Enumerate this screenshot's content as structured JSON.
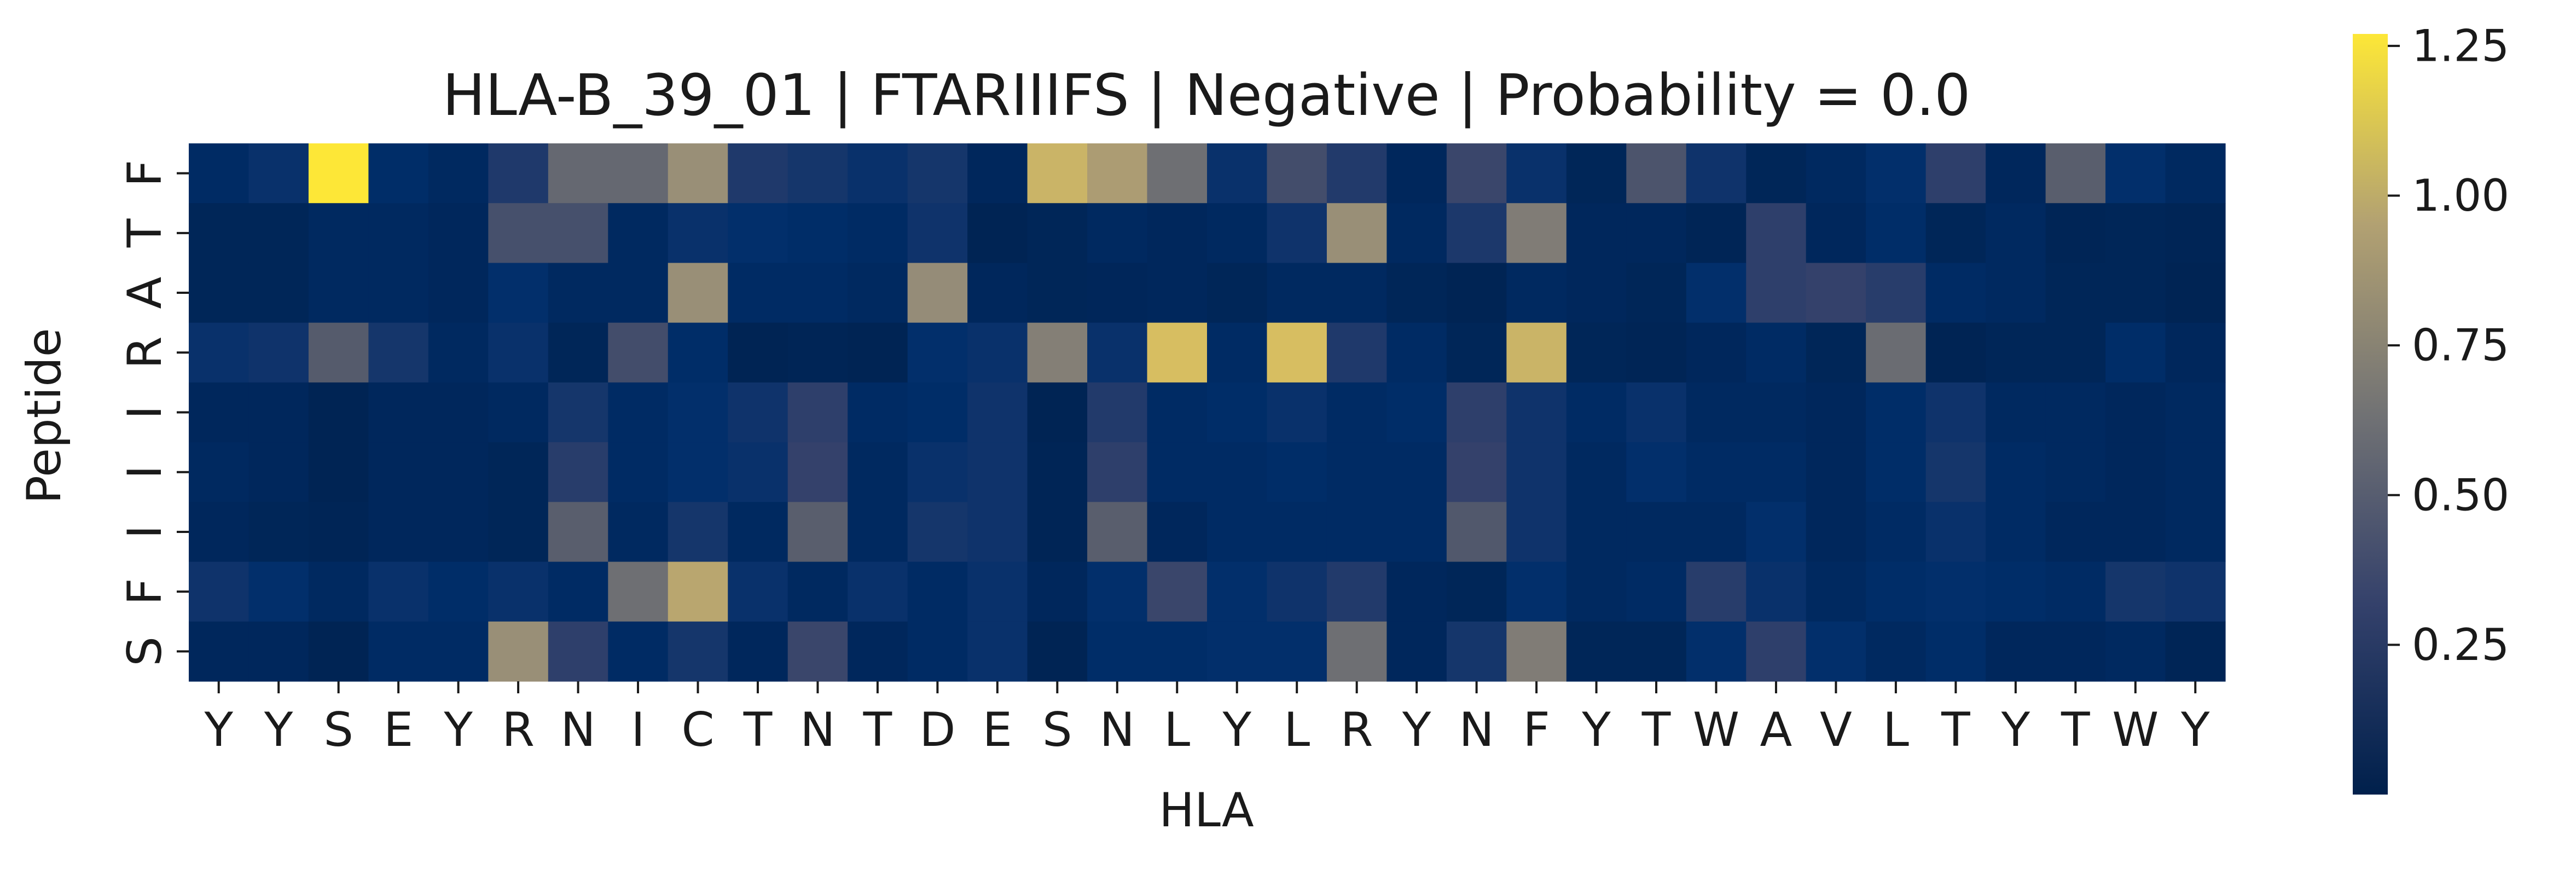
{
  "chart_data": {
    "type": "heatmap",
    "title": "HLA-B_39_01 | FTARIIIFS | Negative | Probability = 0.0",
    "xlabel": "HLA",
    "ylabel": "Peptide",
    "x_labels": [
      "Y",
      "Y",
      "S",
      "E",
      "Y",
      "R",
      "N",
      "I",
      "C",
      "T",
      "N",
      "T",
      "D",
      "E",
      "S",
      "N",
      "L",
      "Y",
      "L",
      "R",
      "Y",
      "N",
      "F",
      "Y",
      "T",
      "W",
      "A",
      "V",
      "L",
      "T",
      "Y",
      "T",
      "W",
      "Y"
    ],
    "y_labels": [
      "F",
      "T",
      "A",
      "R",
      "I",
      "I",
      "I",
      "F",
      "S"
    ],
    "colormap": "cividis",
    "vmin": 0.0,
    "vmax": 1.27,
    "colorbar_ticks": [
      "0.25",
      "0.50",
      "0.75",
      "1.00",
      "1.25"
    ],
    "colorbar_tick_values": [
      0.25,
      0.5,
      0.75,
      1.0,
      1.25
    ],
    "values": [
      [
        0.12,
        0.18,
        1.27,
        0.14,
        0.1,
        0.25,
        0.58,
        0.58,
        0.82,
        0.25,
        0.22,
        0.18,
        0.22,
        0.08,
        1.05,
        0.92,
        0.62,
        0.18,
        0.4,
        0.26,
        0.08,
        0.35,
        0.18,
        0.06,
        0.45,
        0.2,
        0.06,
        0.1,
        0.16,
        0.3,
        0.08,
        0.52,
        0.16,
        0.1
      ],
      [
        0.06,
        0.06,
        0.1,
        0.1,
        0.08,
        0.42,
        0.42,
        0.1,
        0.18,
        0.16,
        0.14,
        0.12,
        0.2,
        0.04,
        0.06,
        0.1,
        0.08,
        0.1,
        0.2,
        0.82,
        0.1,
        0.24,
        0.7,
        0.08,
        0.08,
        0.05,
        0.3,
        0.08,
        0.14,
        0.06,
        0.1,
        0.05,
        0.06,
        0.05
      ],
      [
        0.06,
        0.06,
        0.1,
        0.1,
        0.08,
        0.16,
        0.1,
        0.1,
        0.82,
        0.12,
        0.12,
        0.1,
        0.8,
        0.08,
        0.06,
        0.07,
        0.08,
        0.06,
        0.1,
        0.1,
        0.06,
        0.04,
        0.1,
        0.08,
        0.06,
        0.16,
        0.3,
        0.32,
        0.28,
        0.12,
        0.1,
        0.06,
        0.06,
        0.04
      ],
      [
        0.18,
        0.2,
        0.5,
        0.22,
        0.1,
        0.18,
        0.06,
        0.4,
        0.14,
        0.04,
        0.05,
        0.04,
        0.16,
        0.18,
        0.72,
        0.18,
        1.1,
        0.12,
        1.1,
        0.25,
        0.12,
        0.06,
        1.05,
        0.06,
        0.05,
        0.08,
        0.12,
        0.06,
        0.6,
        0.04,
        0.06,
        0.06,
        0.14,
        0.08
      ],
      [
        0.08,
        0.08,
        0.04,
        0.08,
        0.08,
        0.1,
        0.22,
        0.12,
        0.16,
        0.2,
        0.3,
        0.12,
        0.14,
        0.2,
        0.04,
        0.26,
        0.12,
        0.14,
        0.18,
        0.12,
        0.14,
        0.3,
        0.2,
        0.12,
        0.18,
        0.1,
        0.1,
        0.08,
        0.14,
        0.2,
        0.1,
        0.1,
        0.08,
        0.1
      ],
      [
        0.1,
        0.08,
        0.04,
        0.08,
        0.08,
        0.06,
        0.28,
        0.12,
        0.16,
        0.18,
        0.32,
        0.1,
        0.18,
        0.2,
        0.05,
        0.3,
        0.12,
        0.12,
        0.14,
        0.12,
        0.12,
        0.32,
        0.2,
        0.1,
        0.16,
        0.12,
        0.12,
        0.08,
        0.14,
        0.22,
        0.12,
        0.1,
        0.08,
        0.1
      ],
      [
        0.08,
        0.06,
        0.05,
        0.08,
        0.08,
        0.06,
        0.52,
        0.1,
        0.22,
        0.1,
        0.52,
        0.1,
        0.22,
        0.2,
        0.05,
        0.52,
        0.08,
        0.12,
        0.12,
        0.12,
        0.12,
        0.48,
        0.2,
        0.1,
        0.1,
        0.1,
        0.16,
        0.08,
        0.12,
        0.18,
        0.12,
        0.08,
        0.08,
        0.1
      ],
      [
        0.2,
        0.16,
        0.1,
        0.18,
        0.14,
        0.18,
        0.12,
        0.62,
        0.98,
        0.18,
        0.1,
        0.18,
        0.12,
        0.18,
        0.08,
        0.16,
        0.35,
        0.16,
        0.2,
        0.26,
        0.08,
        0.06,
        0.16,
        0.1,
        0.12,
        0.28,
        0.18,
        0.1,
        0.14,
        0.16,
        0.14,
        0.12,
        0.22,
        0.2
      ],
      [
        0.08,
        0.08,
        0.04,
        0.12,
        0.12,
        0.82,
        0.3,
        0.12,
        0.22,
        0.08,
        0.35,
        0.08,
        0.12,
        0.18,
        0.04,
        0.14,
        0.14,
        0.16,
        0.16,
        0.62,
        0.08,
        0.22,
        0.7,
        0.06,
        0.06,
        0.16,
        0.3,
        0.16,
        0.1,
        0.14,
        0.08,
        0.08,
        0.1,
        0.05
      ]
    ]
  }
}
